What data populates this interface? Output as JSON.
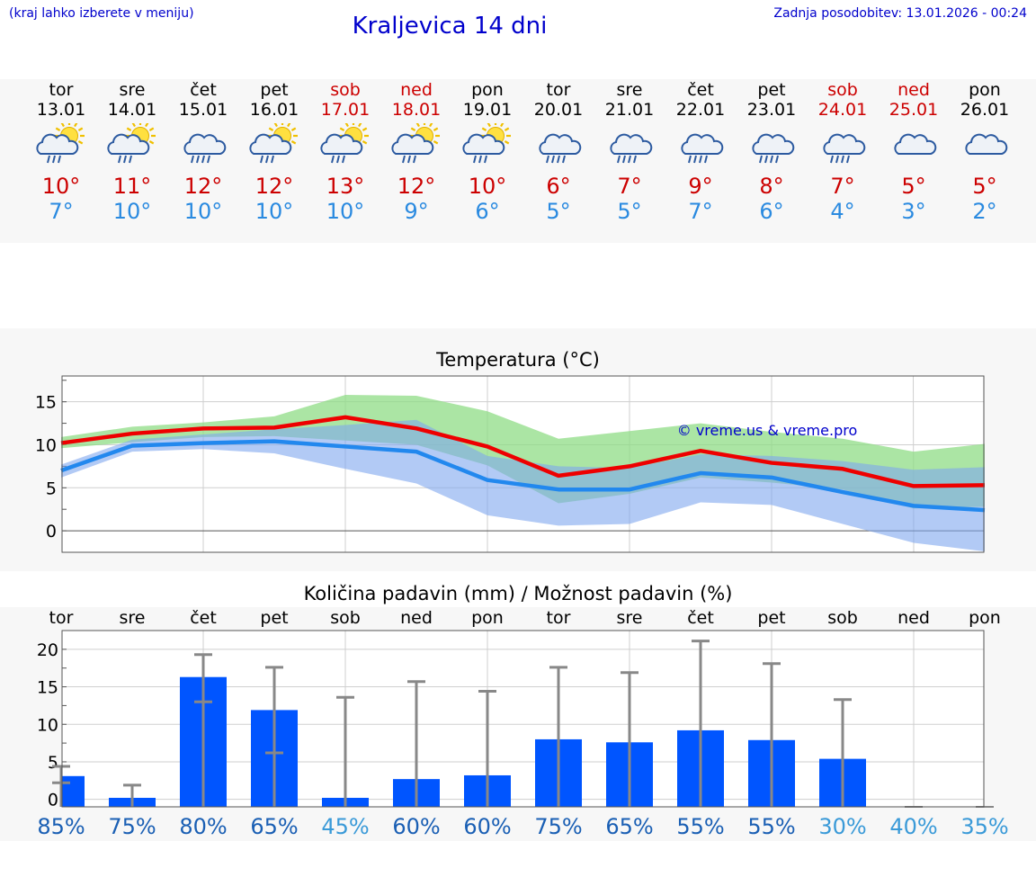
{
  "header": {
    "hint": "(kraj lahko izberete v meniju)",
    "title": "Kraljevica 14 dni",
    "updated": "Zadnja posodobitev: 13.01.2026 - 00:24"
  },
  "forecast": [
    {
      "day": "tor",
      "date": "13.01",
      "max": "10°",
      "min": "7°",
      "weekend": false,
      "icon": "sun-cloud-rain-icon"
    },
    {
      "day": "sre",
      "date": "14.01",
      "max": "11°",
      "min": "10°",
      "weekend": false,
      "icon": "sun-cloud-rain-icon"
    },
    {
      "day": "čet",
      "date": "15.01",
      "max": "12°",
      "min": "10°",
      "weekend": false,
      "icon": "cloud-rain-icon"
    },
    {
      "day": "pet",
      "date": "16.01",
      "max": "12°",
      "min": "10°",
      "weekend": false,
      "icon": "sun-cloud-rain-icon"
    },
    {
      "day": "sob",
      "date": "17.01",
      "max": "13°",
      "min": "10°",
      "weekend": true,
      "icon": "sun-cloud-rain-icon"
    },
    {
      "day": "ned",
      "date": "18.01",
      "max": "12°",
      "min": "9°",
      "weekend": true,
      "icon": "sun-cloud-rain-icon"
    },
    {
      "day": "pon",
      "date": "19.01",
      "max": "10°",
      "min": "6°",
      "weekend": false,
      "icon": "sun-cloud-rain-icon"
    },
    {
      "day": "tor",
      "date": "20.01",
      "max": "6°",
      "min": "5°",
      "weekend": false,
      "icon": "cloud-rain-icon"
    },
    {
      "day": "sre",
      "date": "21.01",
      "max": "7°",
      "min": "5°",
      "weekend": false,
      "icon": "cloud-rain-icon"
    },
    {
      "day": "čet",
      "date": "22.01",
      "max": "9°",
      "min": "7°",
      "weekend": false,
      "icon": "cloud-rain-icon"
    },
    {
      "day": "pet",
      "date": "23.01",
      "max": "8°",
      "min": "6°",
      "weekend": false,
      "icon": "cloud-rain-icon"
    },
    {
      "day": "sob",
      "date": "24.01",
      "max": "7°",
      "min": "4°",
      "weekend": true,
      "icon": "cloud-rain-icon"
    },
    {
      "day": "ned",
      "date": "25.01",
      "max": "5°",
      "min": "3°",
      "weekend": true,
      "icon": "cloud-light-rain-icon"
    },
    {
      "day": "pon",
      "date": "26.01",
      "max": "5°",
      "min": "2°",
      "weekend": false,
      "icon": "cloud-light-rain-icon"
    }
  ],
  "chart_data": [
    {
      "type": "line",
      "title": "Temperatura (°C)",
      "ylim": [
        -2.5,
        18
      ],
      "yticks": [
        0,
        5,
        10,
        15
      ],
      "watermark": "© vreme.us & vreme.pro",
      "x": [
        0,
        1,
        2,
        3,
        4,
        5,
        6,
        7,
        8,
        9,
        10,
        11,
        12,
        13
      ],
      "series": [
        {
          "name": "max",
          "color": "#ee0000",
          "values": [
            10.2,
            11.3,
            11.9,
            12.0,
            13.2,
            11.9,
            9.8,
            6.4,
            7.5,
            9.3,
            7.9,
            7.2,
            5.2,
            5.3
          ]
        },
        {
          "name": "min",
          "color": "#2288ee",
          "values": [
            7.0,
            9.9,
            10.2,
            10.4,
            9.8,
            9.2,
            5.9,
            4.8,
            4.8,
            6.7,
            6.2,
            4.5,
            2.9,
            2.4
          ]
        }
      ],
      "bands": [
        {
          "name": "max-range",
          "color": "#8fdc86",
          "lower": [
            9.6,
            10.3,
            10.9,
            11.0,
            10.5,
            10.0,
            7.6,
            3.2,
            4.3,
            6.2,
            5.6,
            4.8,
            2.6,
            2.8
          ],
          "upper": [
            10.9,
            12.1,
            12.6,
            13.3,
            15.8,
            15.7,
            13.9,
            10.7,
            11.6,
            12.5,
            11.5,
            10.7,
            9.2,
            10.1
          ]
        },
        {
          "name": "min-range",
          "color": "#7fa7ee",
          "lower": [
            6.2,
            9.2,
            9.5,
            9.0,
            7.2,
            5.5,
            1.8,
            0.6,
            0.8,
            3.3,
            3.0,
            0.8,
            -1.4,
            -2.4
          ],
          "upper": [
            7.7,
            10.6,
            11.2,
            11.8,
            12.3,
            12.9,
            8.7,
            7.5,
            7.3,
            8.9,
            8.7,
            8.1,
            7.1,
            7.4
          ]
        }
      ]
    },
    {
      "type": "bar",
      "title": "Količina padavin (mm) / Možnost padavin (%)",
      "ylim": [
        -1,
        22.5
      ],
      "yticks": [
        0,
        5,
        10,
        15,
        20
      ],
      "categories": [
        "tor",
        "sre",
        "čet",
        "pet",
        "sob",
        "ned",
        "pon",
        "tor",
        "sre",
        "čet",
        "pet",
        "sob",
        "ned",
        "pon"
      ],
      "values": [
        3.1,
        0.2,
        16.3,
        11.9,
        0.2,
        2.7,
        3.2,
        8.0,
        7.6,
        9.2,
        7.9,
        5.4,
        0,
        0
      ],
      "err_low": [
        2.2,
        0,
        13.0,
        6.2,
        0,
        0,
        0,
        0,
        0,
        0,
        0,
        0,
        0,
        0
      ],
      "err_high": [
        4.4,
        1.9,
        19.3,
        17.6,
        13.6,
        15.7,
        14.4,
        17.6,
        16.9,
        21.1,
        18.1,
        13.3,
        0,
        0
      ],
      "probability": [
        "85%",
        "75%",
        "80%",
        "65%",
        "45%",
        "60%",
        "60%",
        "75%",
        "65%",
        "55%",
        "55%",
        "30%",
        "40%",
        "35%"
      ]
    }
  ]
}
